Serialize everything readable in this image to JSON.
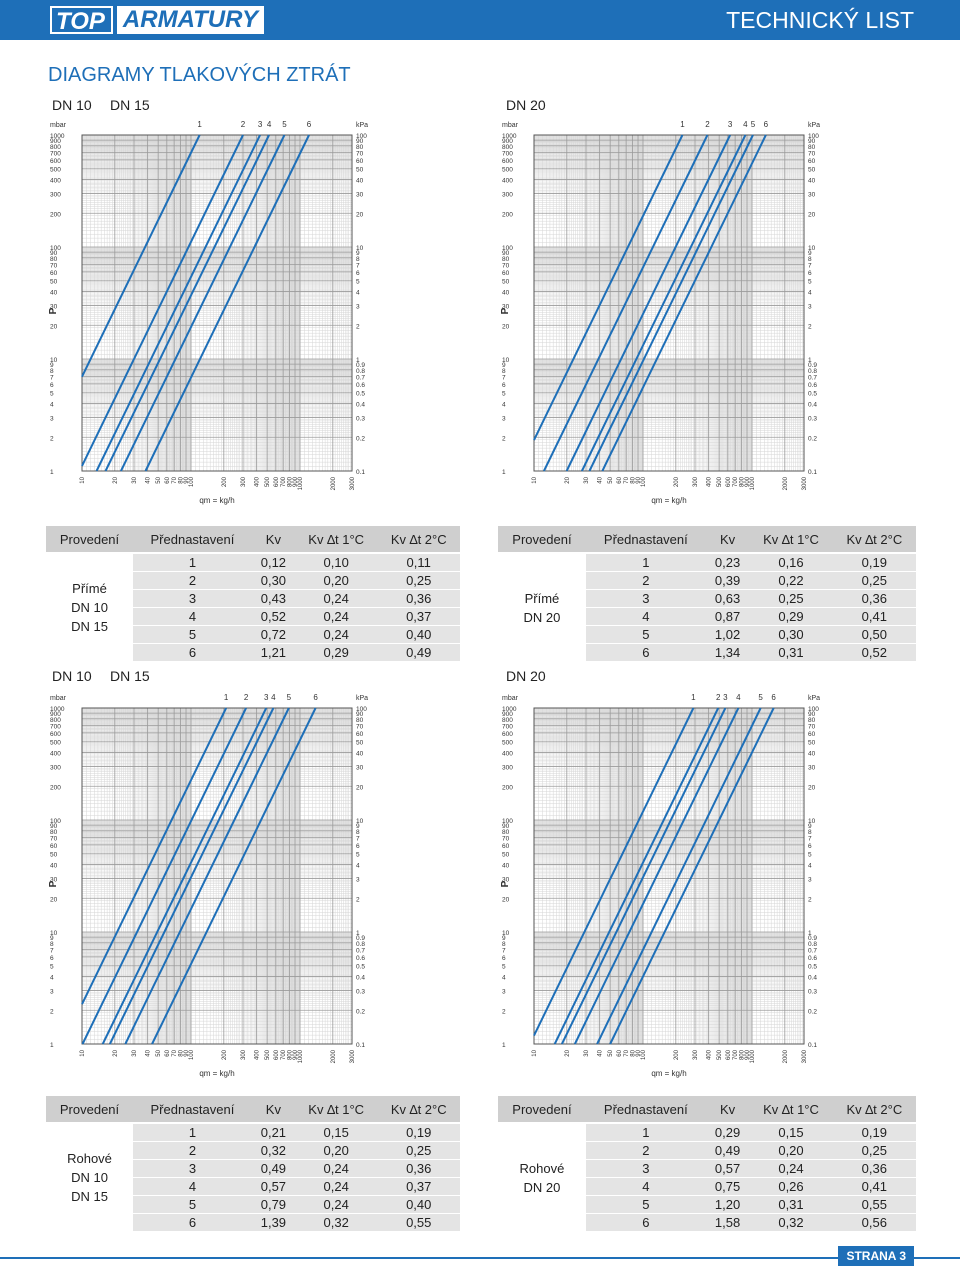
{
  "header": {
    "logo_top": "TOP",
    "logo_armatury": "ARMATURY",
    "doc_type": "TECHNICKÝ LIST"
  },
  "title": "DIAGRAMY TLAKOVÝCH ZTRÁT",
  "section_labels": {
    "top_left_a": "DN 10",
    "top_left_b": "DN 15",
    "top_right": "DN 20",
    "mid_left_a": "DN 10",
    "mid_left_b": "DN 15",
    "mid_right": "DN 20"
  },
  "chart_common": {
    "unit_left": "mbar",
    "unit_right": "kPa",
    "y_axis_letter": "P",
    "x_label": "qm = kg/h",
    "y_ticks_mbar": [
      "1000",
      "900",
      "800",
      "700",
      "600",
      "500",
      "400",
      "300",
      "200",
      "100",
      "90",
      "80",
      "70",
      "60",
      "50",
      "40",
      "30",
      "20",
      "10",
      "9",
      "8",
      "7",
      "6",
      "5",
      "4",
      "3",
      "2",
      "1"
    ],
    "y_ticks_kpa": [
      "100",
      "90",
      "80",
      "70",
      "60",
      "50",
      "40",
      "30",
      "20",
      "10",
      "9",
      "8",
      "7",
      "6",
      "5",
      "4",
      "3",
      "2",
      "1",
      "0.9",
      "0.8",
      "0.7",
      "0.6",
      "0.5",
      "0.4",
      "0.3",
      "0.2",
      "0.1"
    ],
    "x_ticks": [
      "10",
      "20",
      "30",
      "40",
      "50",
      "60",
      "70",
      "80",
      "90",
      "100",
      "200",
      "300",
      "400",
      "500",
      "600",
      "700",
      "800",
      "900",
      "1000",
      "2000",
      "3000"
    ],
    "line_color": "#1e6fb8"
  },
  "chart_data": [
    {
      "type": "line",
      "chart": "DN 10 / DN 15 přímé",
      "x_scale": "log",
      "y_scale": "log",
      "xlim": [
        10,
        3000
      ],
      "ylim_mbar": [
        1,
        1000
      ],
      "series": [
        {
          "name": "1",
          "kv": 0.12
        },
        {
          "name": "2",
          "kv": 0.3
        },
        {
          "name": "3",
          "kv": 0.43
        },
        {
          "name": "4",
          "kv": 0.52
        },
        {
          "name": "5",
          "kv": 0.72
        },
        {
          "name": "6",
          "kv": 1.21
        }
      ]
    },
    {
      "type": "line",
      "chart": "DN 20 přímé",
      "x_scale": "log",
      "y_scale": "log",
      "xlim": [
        10,
        3000
      ],
      "ylim_mbar": [
        1,
        1000
      ],
      "series": [
        {
          "name": "1",
          "kv": 0.23
        },
        {
          "name": "2",
          "kv": 0.39
        },
        {
          "name": "3",
          "kv": 0.63
        },
        {
          "name": "4",
          "kv": 0.87
        },
        {
          "name": "5",
          "kv": 1.02
        },
        {
          "name": "6",
          "kv": 1.34
        }
      ]
    },
    {
      "type": "line",
      "chart": "DN 10 / DN 15 rohové",
      "x_scale": "log",
      "y_scale": "log",
      "xlim": [
        10,
        3000
      ],
      "ylim_mbar": [
        1,
        1000
      ],
      "series": [
        {
          "name": "1",
          "kv": 0.21
        },
        {
          "name": "2",
          "kv": 0.32
        },
        {
          "name": "3",
          "kv": 0.49
        },
        {
          "name": "4",
          "kv": 0.57
        },
        {
          "name": "5",
          "kv": 0.79
        },
        {
          "name": "6",
          "kv": 1.39
        }
      ]
    },
    {
      "type": "line",
      "chart": "DN 20 rohové",
      "x_scale": "log",
      "y_scale": "log",
      "xlim": [
        10,
        3000
      ],
      "ylim_mbar": [
        1,
        1000
      ],
      "series": [
        {
          "name": "1",
          "kv": 0.29
        },
        {
          "name": "2",
          "kv": 0.49
        },
        {
          "name": "3",
          "kv": 0.57
        },
        {
          "name": "4",
          "kv": 0.75
        },
        {
          "name": "5",
          "kv": 1.2
        },
        {
          "name": "6",
          "kv": 1.58
        }
      ]
    }
  ],
  "table_headers": [
    "Provedení",
    "Přednastavení",
    "Kv",
    "Kv ∆t 1°C",
    "Kv ∆t 2°C"
  ],
  "tables": [
    {
      "group": [
        "Přímé",
        "DN 10",
        "DN 15"
      ],
      "rows": [
        [
          "1",
          "0,12",
          "0,10",
          "0,11"
        ],
        [
          "2",
          "0,30",
          "0,20",
          "0,25"
        ],
        [
          "3",
          "0,43",
          "0,24",
          "0,36"
        ],
        [
          "4",
          "0,52",
          "0,24",
          "0,37"
        ],
        [
          "5",
          "0,72",
          "0,24",
          "0,40"
        ],
        [
          "6",
          "1,21",
          "0,29",
          "0,49"
        ]
      ]
    },
    {
      "group": [
        "Přímé",
        "DN 20"
      ],
      "rows": [
        [
          "1",
          "0,23",
          "0,16",
          "0,19"
        ],
        [
          "2",
          "0,39",
          "0,22",
          "0,25"
        ],
        [
          "3",
          "0,63",
          "0,25",
          "0,36"
        ],
        [
          "4",
          "0,87",
          "0,29",
          "0,41"
        ],
        [
          "5",
          "1,02",
          "0,30",
          "0,50"
        ],
        [
          "6",
          "1,34",
          "0,31",
          "0,52"
        ]
      ]
    },
    {
      "group": [
        "Rohové",
        "DN 10",
        "DN 15"
      ],
      "rows": [
        [
          "1",
          "0,21",
          "0,15",
          "0,19"
        ],
        [
          "2",
          "0,32",
          "0,20",
          "0,25"
        ],
        [
          "3",
          "0,49",
          "0,24",
          "0,36"
        ],
        [
          "4",
          "0,57",
          "0,24",
          "0,37"
        ],
        [
          "5",
          "0,79",
          "0,24",
          "0,40"
        ],
        [
          "6",
          "1,39",
          "0,32",
          "0,55"
        ]
      ]
    },
    {
      "group": [
        "Rohové",
        "DN 20"
      ],
      "rows": [
        [
          "1",
          "0,29",
          "0,15",
          "0,19"
        ],
        [
          "2",
          "0,49",
          "0,20",
          "0,25"
        ],
        [
          "3",
          "0,57",
          "0,24",
          "0,36"
        ],
        [
          "4",
          "0,75",
          "0,26",
          "0,41"
        ],
        [
          "5",
          "1,20",
          "0,31",
          "0,55"
        ],
        [
          "6",
          "1,58",
          "0,32",
          "0,56"
        ]
      ]
    }
  ],
  "footer": {
    "page": "STRANA 3"
  }
}
